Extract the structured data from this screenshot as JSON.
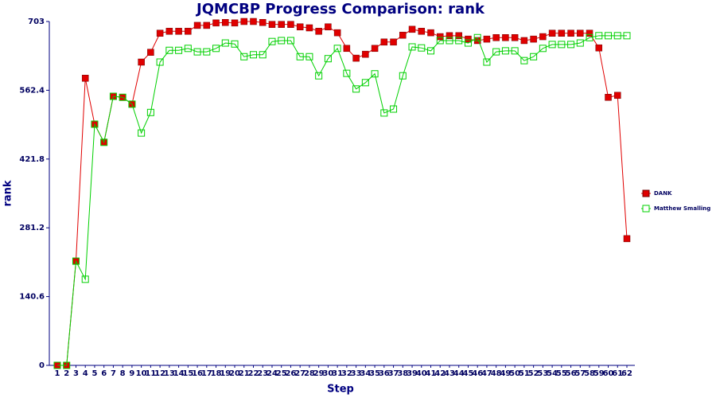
{
  "chart_data": {
    "type": "line",
    "title": "JQMCBP Progress Comparison: rank",
    "x_label": "Step",
    "y_label": "rank",
    "categories": [
      "1",
      "2",
      "3",
      "4",
      "5",
      "6",
      "7",
      "8",
      "9",
      "10",
      "11",
      "12",
      "13",
      "14",
      "15",
      "16",
      "17",
      "18",
      "19",
      "20",
      "21",
      "22",
      "23",
      "24",
      "25",
      "26",
      "27",
      "28",
      "29",
      "30",
      "31",
      "32",
      "33",
      "34",
      "35",
      "36",
      "37",
      "38",
      "39",
      "40",
      "41",
      "42",
      "43",
      "44",
      "45",
      "46",
      "47",
      "48",
      "49",
      "50",
      "51",
      "52",
      "53",
      "54",
      "55",
      "56",
      "57",
      "58",
      "59",
      "60",
      "61",
      "62"
    ],
    "series": [
      {
        "name": "DANK",
        "color": "#e00000",
        "marker": "filled",
        "values": [
          0,
          0,
          213,
          587,
          493,
          456,
          550,
          548,
          534,
          620,
          640,
          679,
          683,
          683,
          683,
          695,
          695,
          700,
          701,
          700,
          703,
          703,
          701,
          697,
          697,
          697,
          692,
          690,
          683,
          692,
          680,
          648,
          628,
          636,
          648,
          661,
          661,
          675,
          687,
          683,
          680,
          672,
          674,
          674,
          667,
          664,
          667,
          670,
          670,
          670,
          664,
          667,
          672,
          679,
          679,
          679,
          679,
          679,
          649,
          548,
          552,
          259
        ]
      },
      {
        "name": "Matthew Smalling",
        "color": "#00d000",
        "marker": "hollow",
        "values": [
          0,
          0,
          213,
          176,
          493,
          456,
          550,
          548,
          534,
          475,
          517,
          620,
          644,
          644,
          648,
          641,
          641,
          648,
          659,
          657,
          631,
          635,
          635,
          662,
          664,
          664,
          631,
          631,
          592,
          627,
          648,
          597,
          565,
          578,
          596,
          516,
          524,
          592,
          651,
          649,
          643,
          664,
          664,
          664,
          659,
          670,
          620,
          641,
          643,
          643,
          623,
          631,
          648,
          656,
          656,
          656,
          659,
          670,
          674,
          674,
          674,
          674
        ]
      }
    ],
    "ylim": [
      0,
      703
    ],
    "yticks": [
      0,
      140.6,
      281.2,
      421.8,
      562.4,
      703
    ],
    "legend": "right",
    "grid": false
  }
}
